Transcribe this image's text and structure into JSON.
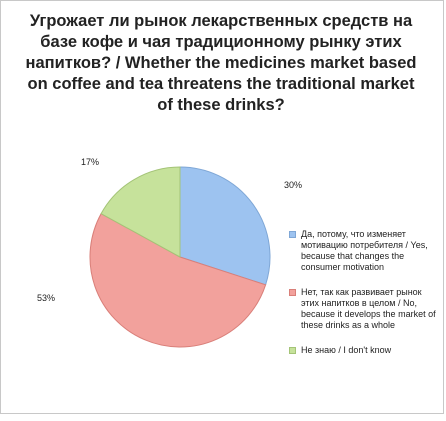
{
  "chart_data": {
    "type": "pie",
    "title": "Угрожает ли рынок лекарственных средств на базе кофе и чая традиционному рынку этих напитков? / Whether the medicines market based on coffee and tea threatens the traditional market of these drinks?",
    "categories": [
      "Да, потому, что изменяет мотивацию потребителя / Yes, because that changes the consumer motivation",
      "Нет, так как развивает рынок этих напитков в целом / No, because it develops the market of these drinks as a whole",
      "Не знаю / I don't know"
    ],
    "values": [
      30,
      53,
      17
    ],
    "labels": [
      "30%",
      "53%",
      "17%"
    ],
    "colors": [
      "#9dc3f0",
      "#f2a19c",
      "#c6e29b"
    ],
    "legend_position": "right"
  }
}
